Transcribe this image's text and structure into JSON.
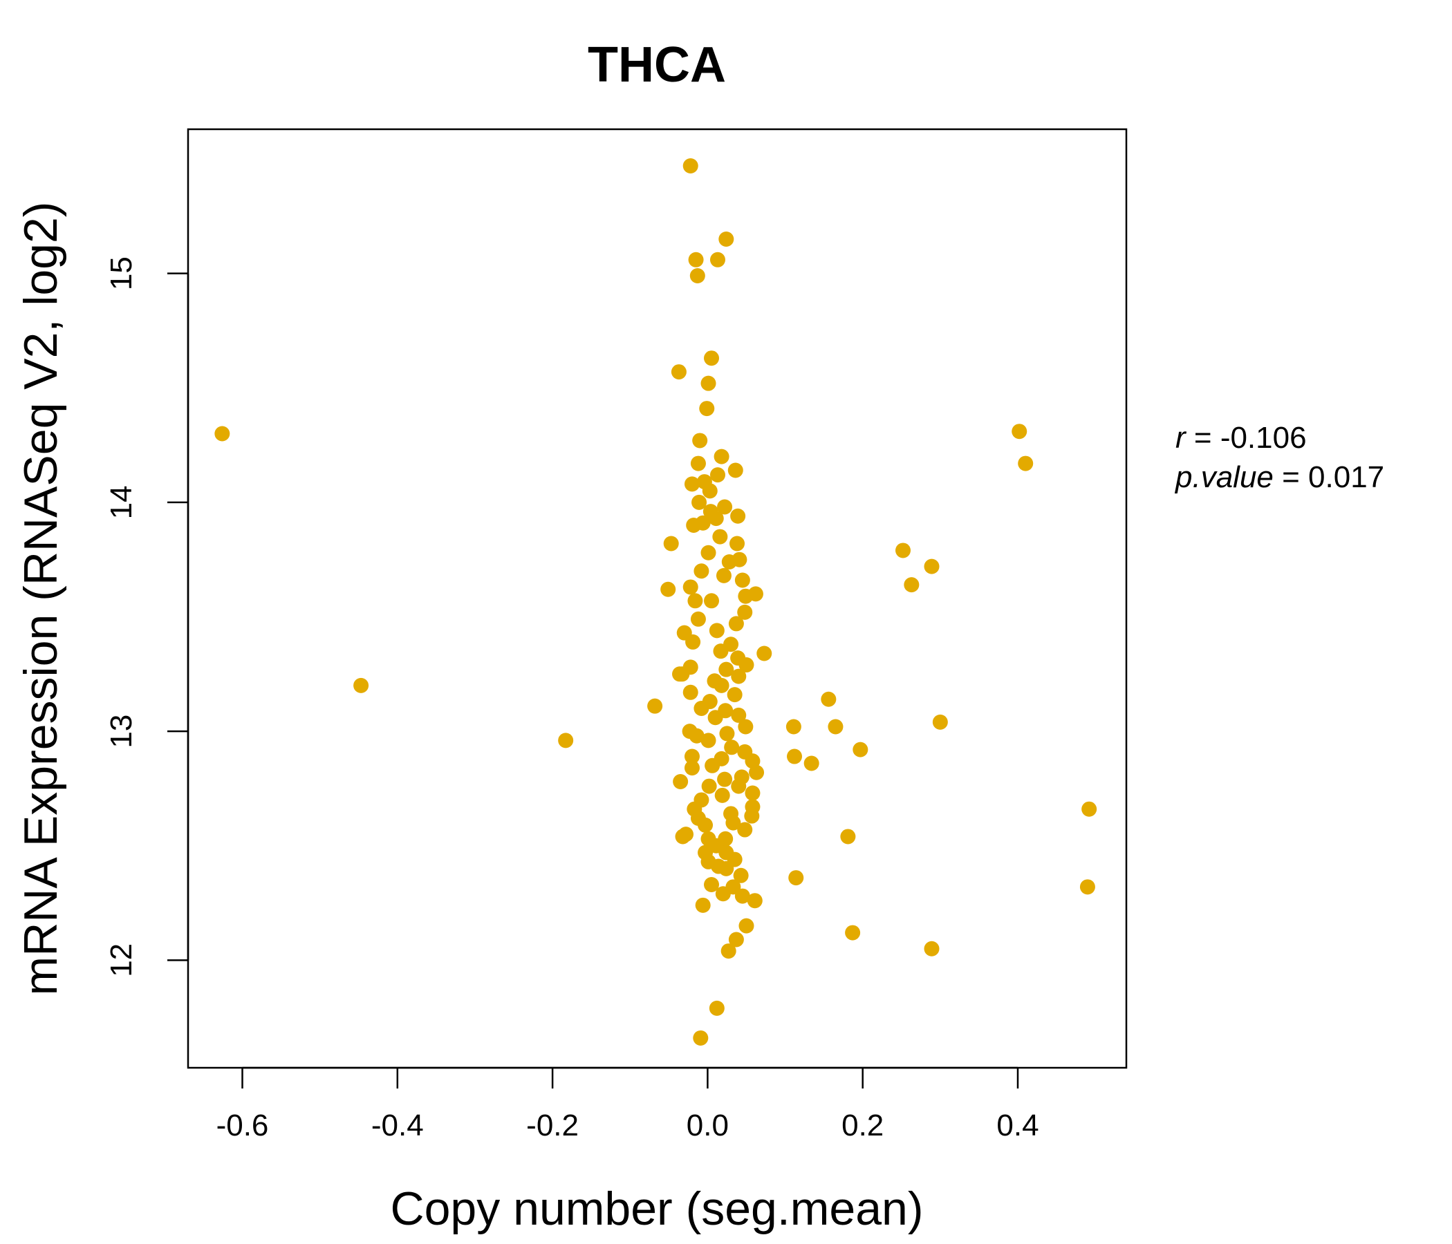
{
  "chart_data": {
    "type": "scatter",
    "title": "THCA",
    "xlabel": "Copy number (seg.mean)",
    "ylabel": "mRNA Expression (RNASeq V2, log2)",
    "xlim": [
      -0.67,
      0.54
    ],
    "ylim": [
      11.53,
      15.63
    ],
    "x_ticks": [
      -0.6,
      -0.4,
      -0.2,
      0.0,
      0.2,
      0.4
    ],
    "x_tick_labels": [
      "-0.6",
      "-0.4",
      "-0.2",
      "0.0",
      "0.2",
      "0.4"
    ],
    "y_ticks": [
      12,
      13,
      14,
      15
    ],
    "y_tick_labels": [
      "12",
      "13",
      "14",
      "15"
    ],
    "grid": false,
    "point_color": "#E3AA00",
    "stats": {
      "r_label": "r",
      "r_value": "-0.106",
      "p_label": "p.value",
      "p_value": "0.017"
    },
    "series": [
      {
        "points": [
          [
            -0.626,
            14.3
          ],
          [
            -0.447,
            13.2
          ],
          [
            -0.183,
            12.96
          ],
          [
            -0.068,
            13.11
          ],
          [
            -0.051,
            13.62
          ],
          [
            -0.047,
            13.82
          ],
          [
            -0.036,
            13.25
          ],
          [
            -0.037,
            14.57
          ],
          [
            -0.022,
            15.47
          ],
          [
            -0.015,
            15.06
          ],
          [
            -0.013,
            14.99
          ],
          [
            0.013,
            15.06
          ],
          [
            0.024,
            15.15
          ],
          [
            0.005,
            14.63
          ],
          [
            0.001,
            14.52
          ],
          [
            -0.001,
            14.41
          ],
          [
            -0.01,
            14.27
          ],
          [
            -0.012,
            14.17
          ],
          [
            -0.02,
            14.08
          ],
          [
            0.018,
            14.2
          ],
          [
            0.036,
            14.14
          ],
          [
            0.013,
            14.12
          ],
          [
            -0.004,
            14.09
          ],
          [
            0.003,
            14.05
          ],
          [
            -0.011,
            14.0
          ],
          [
            0.022,
            13.98
          ],
          [
            0.004,
            13.96
          ],
          [
            0.039,
            13.94
          ],
          [
            -0.018,
            13.9
          ],
          [
            -0.006,
            13.91
          ],
          [
            0.011,
            13.93
          ],
          [
            0.016,
            13.85
          ],
          [
            0.038,
            13.82
          ],
          [
            0.041,
            13.75
          ],
          [
            0.001,
            13.78
          ],
          [
            0.028,
            13.74
          ],
          [
            -0.008,
            13.7
          ],
          [
            0.021,
            13.68
          ],
          [
            0.045,
            13.66
          ],
          [
            0.062,
            13.6
          ],
          [
            0.049,
            13.59
          ],
          [
            -0.022,
            13.63
          ],
          [
            0.005,
            13.57
          ],
          [
            -0.016,
            13.57
          ],
          [
            0.048,
            13.52
          ],
          [
            0.037,
            13.47
          ],
          [
            -0.012,
            13.49
          ],
          [
            -0.03,
            13.43
          ],
          [
            0.012,
            13.44
          ],
          [
            0.073,
            13.34
          ],
          [
            0.03,
            13.38
          ],
          [
            -0.019,
            13.39
          ],
          [
            0.039,
            13.32
          ],
          [
            0.017,
            13.35
          ],
          [
            0.05,
            13.29
          ],
          [
            -0.022,
            13.28
          ],
          [
            0.024,
            13.27
          ],
          [
            0.04,
            13.24
          ],
          [
            -0.033,
            13.25
          ],
          [
            0.009,
            13.22
          ],
          [
            -0.022,
            13.17
          ],
          [
            0.018,
            13.2
          ],
          [
            0.035,
            13.16
          ],
          [
            0.003,
            13.13
          ],
          [
            -0.008,
            13.1
          ],
          [
            0.023,
            13.09
          ],
          [
            0.04,
            13.07
          ],
          [
            0.01,
            13.06
          ],
          [
            0.049,
            13.02
          ],
          [
            -0.023,
            13.0
          ],
          [
            0.025,
            12.99
          ],
          [
            -0.014,
            12.98
          ],
          [
            0.001,
            12.96
          ],
          [
            0.031,
            12.93
          ],
          [
            0.048,
            12.91
          ],
          [
            -0.02,
            12.89
          ],
          [
            0.018,
            12.88
          ],
          [
            0.058,
            12.87
          ],
          [
            0.006,
            12.85
          ],
          [
            -0.02,
            12.84
          ],
          [
            0.063,
            12.82
          ],
          [
            0.044,
            12.8
          ],
          [
            0.022,
            12.79
          ],
          [
            -0.035,
            12.78
          ],
          [
            0.04,
            12.76
          ],
          [
            0.002,
            12.76
          ],
          [
            0.058,
            12.73
          ],
          [
            -0.008,
            12.7
          ],
          [
            0.019,
            12.72
          ],
          [
            0.058,
            12.67
          ],
          [
            -0.017,
            12.66
          ],
          [
            0.03,
            12.64
          ],
          [
            -0.012,
            12.62
          ],
          [
            0.057,
            12.63
          ],
          [
            0.033,
            12.6
          ],
          [
            -0.003,
            12.59
          ],
          [
            0.048,
            12.57
          ],
          [
            -0.028,
            12.55
          ],
          [
            -0.032,
            12.54
          ],
          [
            0.023,
            12.53
          ],
          [
            0.001,
            12.53
          ],
          [
            0.011,
            12.5
          ],
          [
            -0.003,
            12.47
          ],
          [
            0.024,
            12.47
          ],
          [
            0.035,
            12.44
          ],
          [
            0.001,
            12.43
          ],
          [
            0.014,
            12.41
          ],
          [
            0.024,
            12.4
          ],
          [
            0.043,
            12.37
          ],
          [
            0.005,
            12.33
          ],
          [
            0.033,
            12.32
          ],
          [
            0.02,
            12.29
          ],
          [
            0.045,
            12.28
          ],
          [
            0.061,
            12.26
          ],
          [
            -0.006,
            12.24
          ],
          [
            0.05,
            12.15
          ],
          [
            0.037,
            12.09
          ],
          [
            0.027,
            12.04
          ],
          [
            0.012,
            11.79
          ],
          [
            -0.009,
            11.66
          ],
          [
            0.111,
            13.02
          ],
          [
            0.112,
            12.89
          ],
          [
            0.114,
            12.36
          ],
          [
            0.134,
            12.86
          ],
          [
            0.156,
            13.14
          ],
          [
            0.165,
            13.02
          ],
          [
            0.181,
            12.54
          ],
          [
            0.187,
            12.12
          ],
          [
            0.197,
            12.92
          ],
          [
            0.252,
            13.79
          ],
          [
            0.263,
            13.64
          ],
          [
            0.289,
            13.72
          ],
          [
            0.289,
            12.05
          ],
          [
            0.3,
            13.04
          ],
          [
            0.402,
            14.31
          ],
          [
            0.41,
            14.17
          ],
          [
            0.492,
            12.66
          ],
          [
            0.49,
            12.32
          ]
        ]
      }
    ]
  }
}
